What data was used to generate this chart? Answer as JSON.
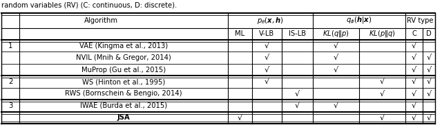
{
  "caption": "random variables (RV) (C: continuous, D: discrete).",
  "rows": [
    {
      "group": "1",
      "name": "VAE (Kingma et al., 2013)",
      "ML": false,
      "VLB": true,
      "ISLB": false,
      "KLqp": true,
      "KLpq": false,
      "C": true,
      "D": false
    },
    {
      "group": "1",
      "name": "NVIL (Mnih & Gregor, 2014)",
      "ML": false,
      "VLB": true,
      "ISLB": false,
      "KLqp": true,
      "KLpq": false,
      "C": true,
      "D": true
    },
    {
      "group": "1",
      "name": "MuProp (Gu et al., 2015)",
      "ML": false,
      "VLB": true,
      "ISLB": false,
      "KLqp": true,
      "KLpq": false,
      "C": true,
      "D": true
    },
    {
      "group": "2",
      "name": "WS (Hinton et al., 1995)",
      "ML": false,
      "VLB": true,
      "ISLB": false,
      "KLqp": false,
      "KLpq": true,
      "C": true,
      "D": true
    },
    {
      "group": "2",
      "name": "RWS (Bornschein & Bengio, 2014)",
      "ML": false,
      "VLB": false,
      "ISLB": true,
      "KLqp": false,
      "KLpq": true,
      "C": true,
      "D": true
    },
    {
      "group": "3",
      "name": "IWAE (Burda et al., 2015)",
      "ML": false,
      "VLB": false,
      "ISLB": true,
      "KLqp": true,
      "KLpq": false,
      "C": true,
      "D": false
    },
    {
      "group": "JSA",
      "name": "JSA",
      "ML": true,
      "VLB": false,
      "ISLB": false,
      "KLqp": false,
      "KLpq": true,
      "C": true,
      "D": true
    }
  ],
  "bg_color": "#ffffff",
  "text_color": "#000000",
  "line_color": "#000000",
  "check": "√",
  "fontsize": 7.2,
  "caption_fontsize": 7.2
}
